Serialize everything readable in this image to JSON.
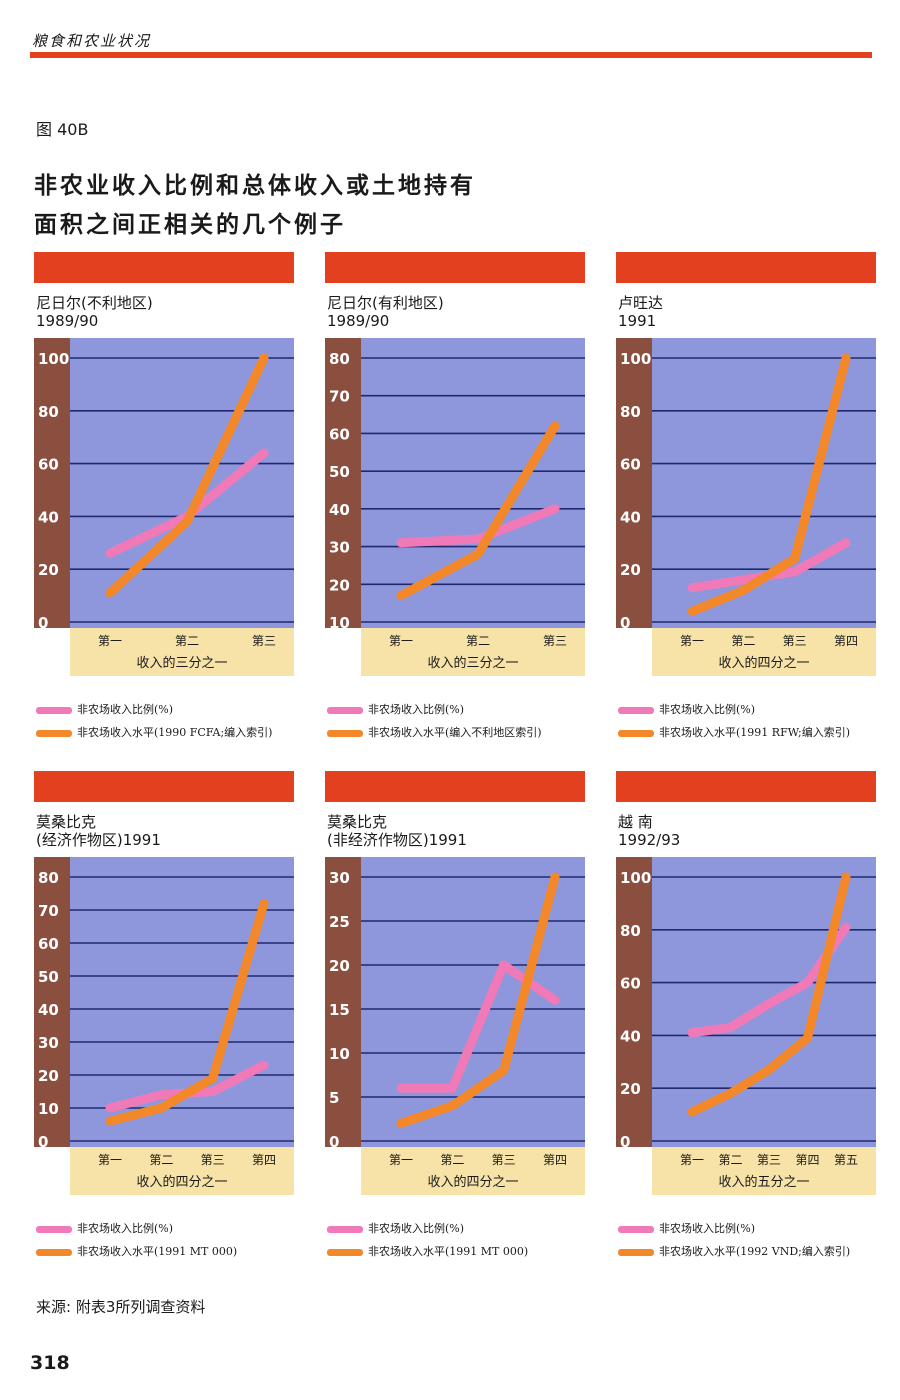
{
  "running_head": "粮食和农业状况",
  "figure_label": "图  40B",
  "title_line1": "非农业收入比例和总体收入或土地持有",
  "title_line2": "面积之间正相关的几个例子",
  "source": "来源:  附表3所列调查资料",
  "page_number": "318",
  "colors": {
    "red": "#e2401f",
    "plot_bg": "#8f97dc",
    "axis_bar": "#8a4f3f",
    "grid": "#1f2a6e",
    "label_bg": "#f7e2a8",
    "pink": "#f07ab8",
    "orange": "#f2882a"
  },
  "chart_data": [
    {
      "type": "line",
      "title_line1": "尼日尔(不利地区)",
      "title_line2": "1989/90",
      "categories": [
        "第一",
        "第二",
        "第三"
      ],
      "xlabel": "收入的三分之一",
      "ylim": [
        0,
        100
      ],
      "yticks": [
        "0",
        "20",
        "40",
        "60",
        "80",
        "100"
      ],
      "series": [
        {
          "name": "非农场收入比例(%)",
          "color": "pink",
          "values": [
            26,
            40,
            64
          ]
        },
        {
          "name": "非农场收入水平(1990 FCFA;编入索引)",
          "color": "orange",
          "values": [
            11,
            38,
            100
          ]
        }
      ]
    },
    {
      "type": "line",
      "title_line1": "尼日尔(有利地区)",
      "title_line2": "1989/90",
      "categories": [
        "第一",
        "第二",
        "第三"
      ],
      "xlabel": "收入的三分之一",
      "ylim": [
        10,
        80
      ],
      "yticks": [
        "10",
        "20",
        "30",
        "40",
        "50",
        "60",
        "70",
        "80"
      ],
      "series": [
        {
          "name": "非农场收入比例(%)",
          "color": "pink",
          "values": [
            31,
            32,
            40
          ]
        },
        {
          "name": "非农场收入水平(编入不利地区索引)",
          "color": "orange",
          "values": [
            17,
            28,
            62
          ]
        }
      ]
    },
    {
      "type": "line",
      "title_line1": "卢旺达",
      "title_line2": "1991",
      "categories": [
        "第一",
        "第二",
        "第三",
        "第四"
      ],
      "xlabel": "收入的四分之一",
      "ylim": [
        0,
        100
      ],
      "yticks": [
        "0",
        "20",
        "40",
        "60",
        "80",
        "100"
      ],
      "series": [
        {
          "name": "非农场收入比例(%)",
          "color": "pink",
          "values": [
            13,
            16,
            19,
            30
          ]
        },
        {
          "name": "非农场收入水平(1991 RFW;编入索引)",
          "color": "orange",
          "values": [
            4,
            12,
            24,
            100
          ]
        }
      ]
    },
    {
      "type": "line",
      "title_line1": "莫桑比克",
      "title_line2": "(经济作物区)1991",
      "categories": [
        "第一",
        "第二",
        "第三",
        "第四"
      ],
      "xlabel": "收入的四分之一",
      "ylim": [
        0,
        80
      ],
      "yticks": [
        "0",
        "10",
        "20",
        "30",
        "40",
        "50",
        "60",
        "70",
        "80"
      ],
      "series": [
        {
          "name": "非农场收入比例(%)",
          "color": "pink",
          "values": [
            10,
            14,
            15,
            23
          ]
        },
        {
          "name": "非农场收入水平(1991 MT 000)",
          "color": "orange",
          "values": [
            6,
            10,
            19,
            72
          ]
        }
      ]
    },
    {
      "type": "line",
      "title_line1": "莫桑比克",
      "title_line2": "(非经济作物区)1991",
      "categories": [
        "第一",
        "第二",
        "第三",
        "第四"
      ],
      "xlabel": "收入的四分之一",
      "ylim": [
        0,
        30
      ],
      "yticks": [
        "0",
        "5",
        "10",
        "15",
        "20",
        "25",
        "30"
      ],
      "series": [
        {
          "name": "非农场收入比例(%)",
          "color": "pink",
          "values": [
            6,
            6,
            20,
            16
          ]
        },
        {
          "name": "非农场收入水平(1991 MT 000)",
          "color": "orange",
          "values": [
            2,
            4,
            8,
            30
          ]
        }
      ]
    },
    {
      "type": "line",
      "title_line1": "越  南",
      "title_line2": "1992/93",
      "categories": [
        "第一",
        "第二",
        "第三",
        "第四",
        "第五"
      ],
      "xlabel": "收入的五分之一",
      "ylim": [
        0,
        100
      ],
      "yticks": [
        "0",
        "20",
        "40",
        "60",
        "80",
        "100"
      ],
      "series": [
        {
          "name": "非农场收入比例(%)",
          "color": "pink",
          "values": [
            41,
            43,
            52,
            60,
            81
          ]
        },
        {
          "name": "非农场收入水平(1992 VND;编入索引)",
          "color": "orange",
          "values": [
            11,
            18,
            27,
            39,
            100
          ]
        }
      ]
    }
  ]
}
